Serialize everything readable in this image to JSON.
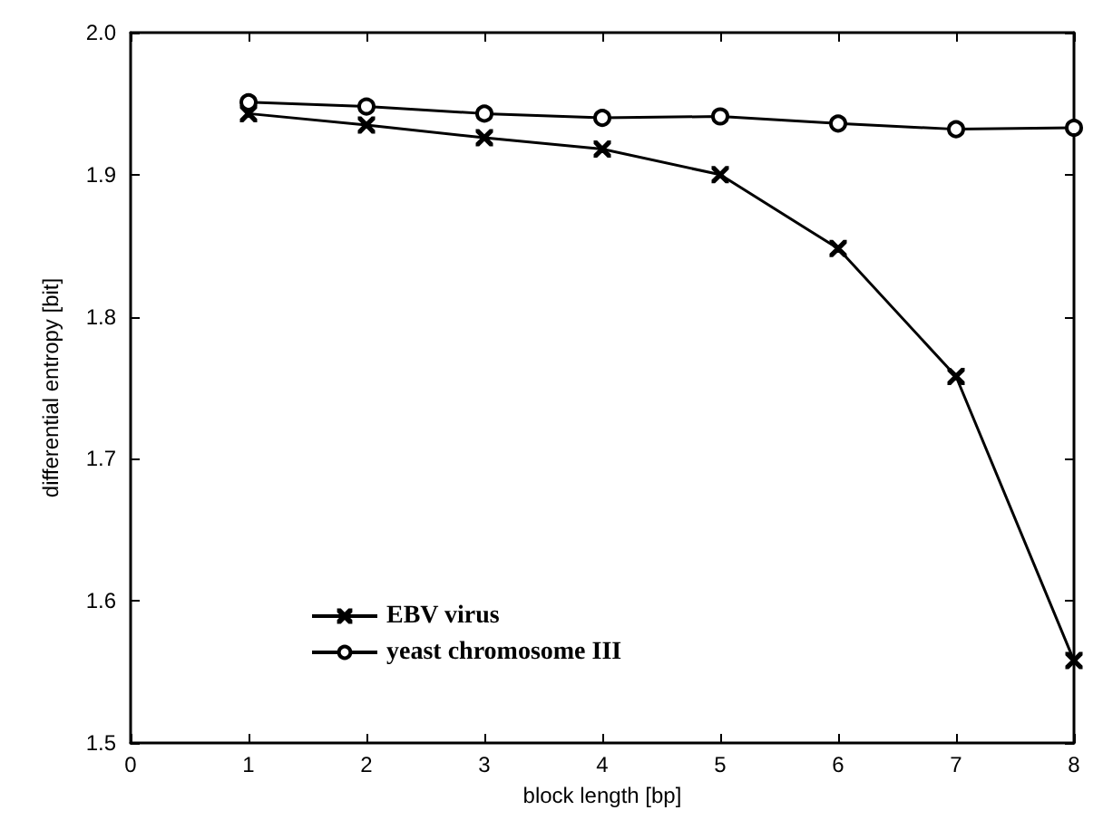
{
  "chart_data": {
    "type": "line",
    "xlabel": "block length [bp]",
    "ylabel": "differential entropy [bit]",
    "x": [
      1,
      2,
      3,
      4,
      5,
      6,
      7,
      8
    ],
    "series": [
      {
        "name": "EBV virus",
        "color": "#000000",
        "marker": "cross",
        "values": [
          1.943,
          1.935,
          1.926,
          1.918,
          1.9,
          1.848,
          1.758,
          1.558
        ]
      },
      {
        "name": "yeast chromosome III",
        "color": "#000000",
        "marker": "circle",
        "values": [
          1.951,
          1.948,
          1.943,
          1.94,
          1.941,
          1.936,
          1.932,
          1.933
        ]
      }
    ],
    "xlim": [
      0,
      8
    ],
    "xticks": [
      0,
      1,
      2,
      3,
      4,
      5,
      6,
      7,
      8
    ],
    "ylim": [
      1.5,
      2.0
    ],
    "yticks": [
      {
        "value": 1.5,
        "label": "1.5"
      },
      {
        "value": 1.6,
        "label": "1.6"
      },
      {
        "value": 1.7,
        "label": "1.7"
      },
      {
        "value": 1.8,
        "label": "1.8"
      },
      {
        "value": 1.9,
        "label": "1.9"
      },
      {
        "value": 2.0,
        "label": "2.0"
      }
    ],
    "grid": false,
    "legend": "bottom left",
    "line_style": "solid"
  }
}
